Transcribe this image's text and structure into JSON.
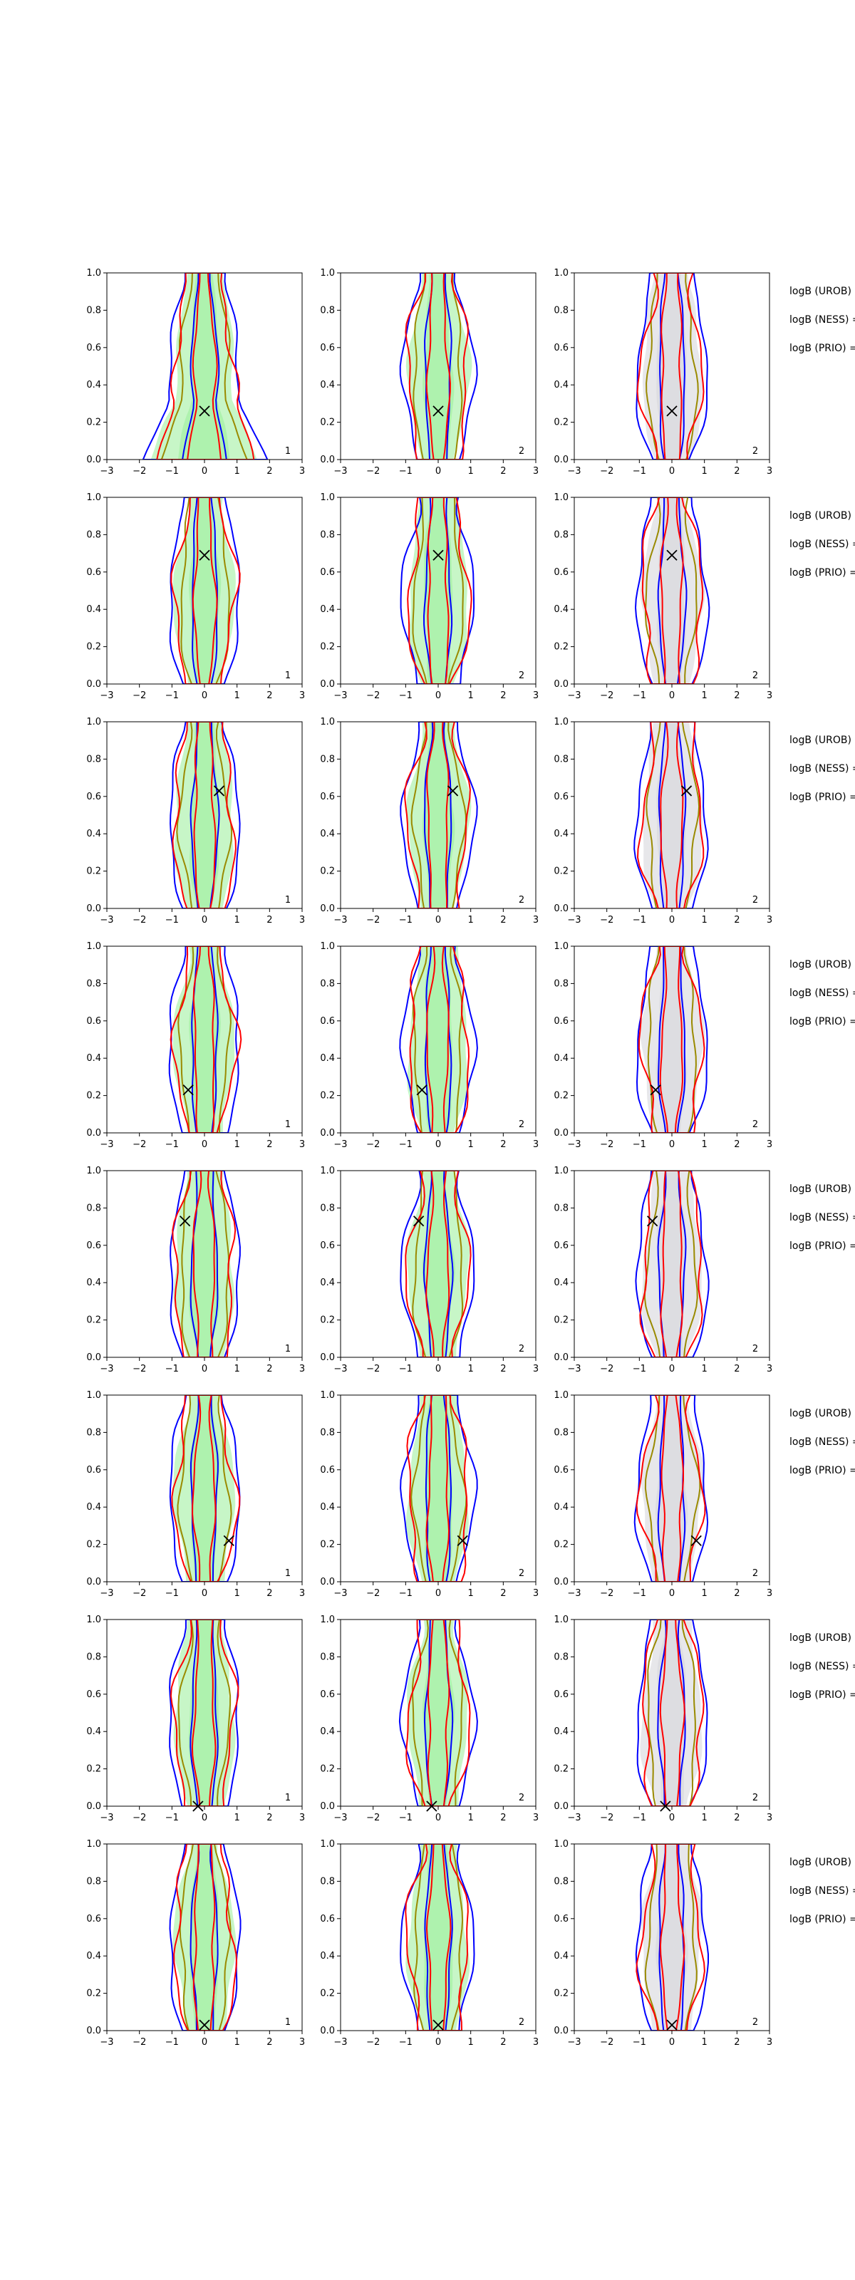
{
  "chart_data": {
    "type": "contour",
    "rows": 8,
    "cols": 3,
    "xlim": [
      -3,
      3
    ],
    "ylim": [
      0,
      1
    ],
    "xticks": [
      "−3",
      "−2",
      "−1",
      "0",
      "1",
      "2",
      "3"
    ],
    "yticks": [
      "0.0",
      "0.2",
      "0.4",
      "0.6",
      "0.8",
      "1.0"
    ],
    "colors": {
      "fill_green": "#90ee90",
      "fill_gray": "#d3d3d8",
      "blue": "#0000ff",
      "red": "#ff0000",
      "olive": "#9a8a00",
      "marker": "#000000"
    },
    "panel_numbers": [
      "1",
      "2",
      "2"
    ],
    "marker": [
      {
        "x": 0.0,
        "y": 0.26
      },
      {
        "x": 0.0,
        "y": 0.69
      },
      {
        "x": 0.45,
        "y": 0.63
      },
      {
        "x": -0.5,
        "y": 0.23
      },
      {
        "x": -0.6,
        "y": 0.73
      },
      {
        "x": 0.75,
        "y": 0.22
      },
      {
        "x": -0.2,
        "y": 0.0
      },
      {
        "x": 0.0,
        "y": 0.03
      }
    ],
    "logb_labels": [
      "logB (UROB) =",
      "logB (NESS) =",
      "logB (PRIO) ="
    ]
  }
}
